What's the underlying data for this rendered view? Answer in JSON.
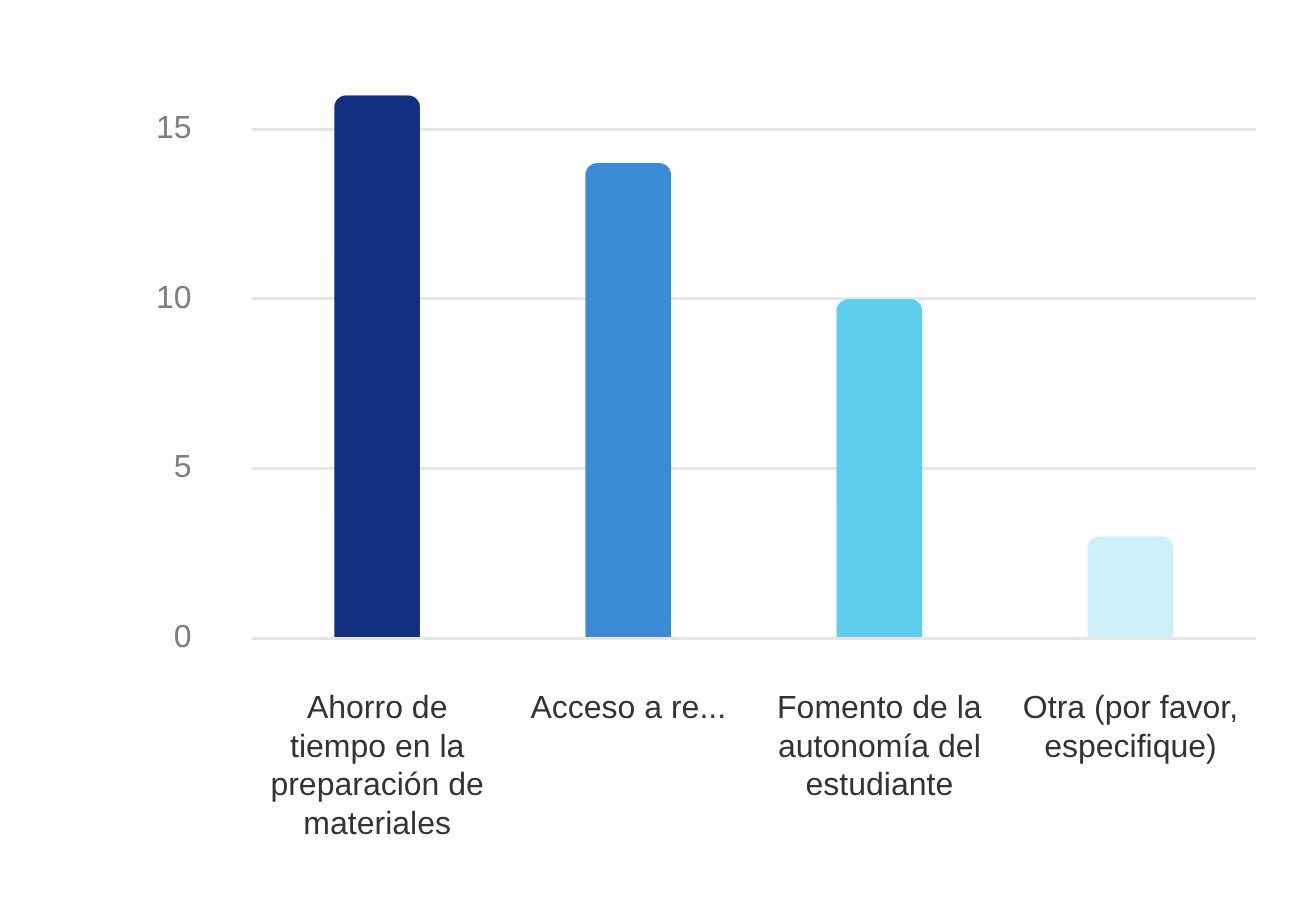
{
  "chart_data": {
    "type": "bar",
    "categories": [
      "Ahorro de tiempo en la preparación de materiales",
      "Acceso a re...",
      "Fomento de la autonomía del estudiante",
      "Otra (por favor, especifique)"
    ],
    "values": [
      16,
      14,
      10,
      3
    ],
    "colors": [
      "#132f80",
      "#3a8ad6",
      "#5ecdee",
      "#cdf0fa"
    ],
    "ylim": [
      0,
      16
    ],
    "yticks": [
      0,
      5,
      10,
      15
    ],
    "grid": "y",
    "legend": false
  }
}
